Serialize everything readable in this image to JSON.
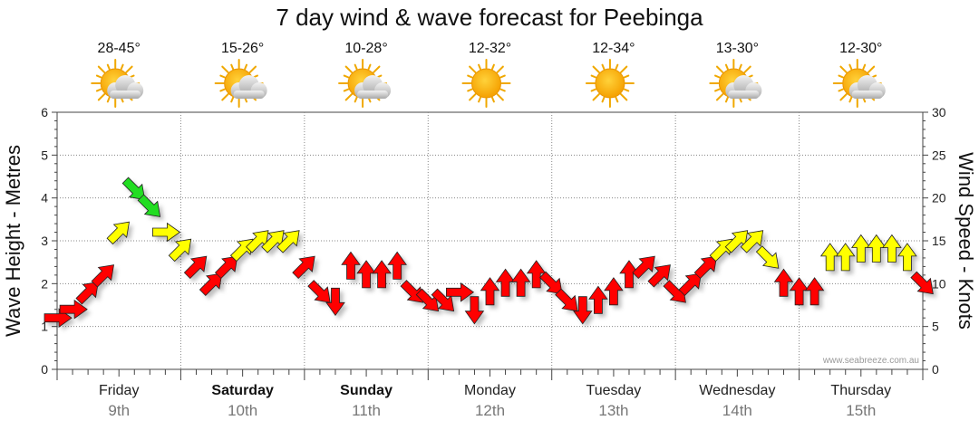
{
  "chart_data": {
    "type": "line",
    "title": "7 day wind & wave forecast for Peebinga",
    "ylabel_left": "Wave Height - Metres",
    "ylabel_right": "Wind Speed - Knots",
    "ylim_left": [
      0,
      6
    ],
    "ylim_right": [
      0,
      30
    ],
    "yticks_left": [
      "0",
      "1",
      "2",
      "3",
      "4",
      "5",
      "6"
    ],
    "yticks_right": [
      "0",
      "5",
      "10",
      "15",
      "20",
      "25",
      "30"
    ],
    "watermark": "www.seabreeze.com.au",
    "days": [
      {
        "name": "Friday",
        "date": "9th",
        "bold": false,
        "temp": "28-45°",
        "icon": "partly-cloudy-icon"
      },
      {
        "name": "Saturday",
        "date": "10th",
        "bold": true,
        "temp": "15-26°",
        "icon": "partly-cloudy-icon"
      },
      {
        "name": "Sunday",
        "date": "11th",
        "bold": true,
        "temp": "10-28°",
        "icon": "partly-cloudy-icon"
      },
      {
        "name": "Monday",
        "date": "12th",
        "bold": false,
        "temp": "12-32°",
        "icon": "sunny-icon"
      },
      {
        "name": "Tuesday",
        "date": "13th",
        "bold": false,
        "temp": "12-34°",
        "icon": "sunny-icon"
      },
      {
        "name": "Wednesday",
        "date": "14th",
        "bold": false,
        "temp": "13-30°",
        "icon": "partly-cloudy-icon"
      },
      {
        "name": "Thursday",
        "date": "15th",
        "bold": false,
        "temp": "12-30°",
        "icon": "partly-cloudy-icon"
      }
    ],
    "wind_series": {
      "name": "Wind speed (knots)",
      "x_hours": [
        0,
        3,
        6,
        9,
        12,
        15,
        18,
        21,
        24,
        27,
        30,
        33,
        36,
        39,
        42,
        45,
        48,
        51,
        54,
        57,
        60,
        63,
        66,
        69,
        72,
        75,
        78,
        81,
        84,
        87,
        90,
        93,
        96,
        99,
        102,
        105,
        108,
        111,
        114,
        117,
        120,
        123,
        126,
        129,
        132,
        135,
        138,
        141,
        144,
        147,
        150,
        153,
        156,
        159,
        162,
        165,
        168
      ],
      "speed": [
        6,
        7,
        9,
        11,
        16,
        21,
        19,
        16,
        14,
        12,
        10,
        12,
        14,
        15,
        15,
        15,
        12,
        9,
        8,
        12,
        11,
        11,
        12,
        9,
        8,
        8,
        9,
        7,
        9,
        10,
        10,
        11,
        10,
        8,
        7,
        8,
        9,
        11,
        12,
        11,
        9,
        10,
        12,
        14,
        15,
        15,
        13,
        10,
        9,
        9,
        13,
        13,
        14,
        14,
        14,
        13,
        10
      ],
      "direction": [
        "W",
        "W",
        "SW",
        "SW",
        "SW",
        "NW",
        "NW",
        "W",
        "SW",
        "SW",
        "SW",
        "SW",
        "SW",
        "SW",
        "SW",
        "SW",
        "SW",
        "NW",
        "N",
        "S",
        "S",
        "S",
        "S",
        "NW",
        "NW",
        "NW",
        "W",
        "N",
        "S",
        "S",
        "S",
        "S",
        "NW",
        "NW",
        "N",
        "S",
        "S",
        "S",
        "SW",
        "SW",
        "NW",
        "SW",
        "SW",
        "SW",
        "SW",
        "SW",
        "NW",
        "S",
        "S",
        "S",
        "S",
        "S",
        "S",
        "S",
        "S",
        "S",
        "NW"
      ]
    },
    "legend_colors": {
      "green": "#22cc22",
      "yellow": "#ffff00",
      "red": "#ff0000"
    }
  }
}
